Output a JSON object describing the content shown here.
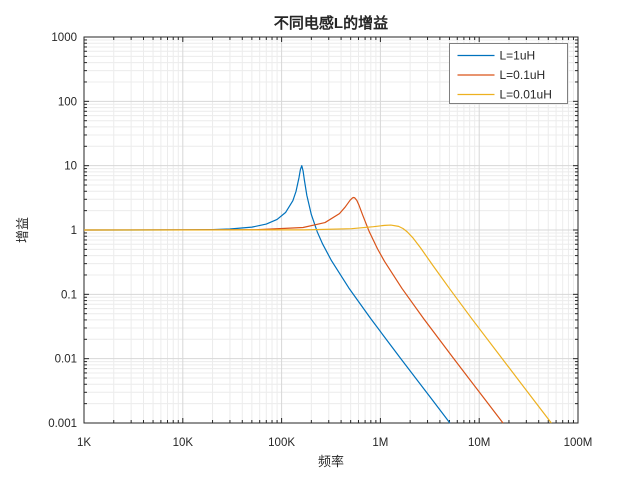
{
  "colors": {
    "background": "#ffffff",
    "axis": "#262626",
    "grid_major": "#d7d7d7",
    "grid_minor": "#ececec",
    "legend_border": "#808080",
    "series": [
      "#0072BD",
      "#D95319",
      "#EDB120"
    ]
  },
  "chart_data": {
    "type": "line",
    "title": "不同电感L的增益",
    "xlabel": "频率",
    "ylabel": "增益",
    "x_scale": "log",
    "y_scale": "log",
    "xlim": [
      1000,
      100000000
    ],
    "ylim": [
      0.001,
      1000
    ],
    "grid": {
      "major": true,
      "minor": true
    },
    "x_ticks": [
      [
        1000,
        "1K"
      ],
      [
        10000,
        "10K"
      ],
      [
        100000,
        "100K"
      ],
      [
        1000000,
        "1M"
      ],
      [
        10000000,
        "10M"
      ],
      [
        100000000,
        "100M"
      ]
    ],
    "y_ticks": [
      [
        1000,
        "1000"
      ],
      [
        100,
        "100"
      ],
      [
        10,
        "10"
      ],
      [
        1,
        "1"
      ],
      [
        0.1,
        "0.1"
      ],
      [
        0.01,
        "0.01"
      ],
      [
        0.001,
        "0.001"
      ]
    ],
    "legend": {
      "position": "top-right",
      "entries": [
        "L=1uH",
        "L=0.1uH",
        "L=0.01uH"
      ]
    },
    "series": [
      {
        "name": "L=1uH",
        "color": "#0072BD",
        "points": [
          [
            1000,
            1.0
          ],
          [
            3000,
            1.0
          ],
          [
            10000,
            1.004
          ],
          [
            20000,
            1.016
          ],
          [
            30000,
            1.036
          ],
          [
            50000,
            1.108
          ],
          [
            70000,
            1.235
          ],
          [
            90000,
            1.458
          ],
          [
            110000,
            1.88
          ],
          [
            130000,
            2.86
          ],
          [
            140000,
            4.0
          ],
          [
            150000,
            6.53
          ],
          [
            155000,
            8.71
          ],
          [
            160000,
            10.0
          ],
          [
            165000,
            8.26
          ],
          [
            170000,
            5.99
          ],
          [
            180000,
            3.47
          ],
          [
            200000,
            1.736
          ],
          [
            230000,
            0.929
          ],
          [
            260000,
            0.607
          ],
          [
            320000,
            0.333
          ],
          [
            480000,
            0.125
          ],
          [
            800000,
            0.0417
          ],
          [
            1600000,
            0.0101
          ],
          [
            3200000,
            0.00251
          ],
          [
            5050000,
            0.001
          ]
        ]
      },
      {
        "name": "L=0.1uH",
        "color": "#D95319",
        "points": [
          [
            1000,
            1.0
          ],
          [
            55000,
            1.01
          ],
          [
            165000,
            1.093
          ],
          [
            275000,
            1.305
          ],
          [
            385000,
            1.798
          ],
          [
            440000,
            2.272
          ],
          [
            495000,
            2.921
          ],
          [
            523000,
            3.164
          ],
          [
            536000,
            3.2
          ],
          [
            550000,
            3.16
          ],
          [
            578000,
            2.876
          ],
          [
            605000,
            2.46
          ],
          [
            660000,
            1.721
          ],
          [
            770000,
            0.946
          ],
          [
            935000,
            0.509
          ],
          [
            1100000,
            0.326
          ],
          [
            1650000,
            0.124
          ],
          [
            2750000,
            0.0416
          ],
          [
            5500000,
            0.0101
          ],
          [
            11000000,
            0.00251
          ],
          [
            17400000,
            0.001
          ]
        ]
      },
      {
        "name": "L=0.01uH",
        "color": "#EDB120",
        "points": [
          [
            1000,
            1.0
          ],
          [
            170000,
            1.005
          ],
          [
            510000,
            1.048
          ],
          [
            850000,
            1.126
          ],
          [
            1105000,
            1.181
          ],
          [
            1275000,
            1.194
          ],
          [
            1530000,
            1.139
          ],
          [
            1700000,
            1.05
          ],
          [
            1870000,
            0.936
          ],
          [
            2125000,
            0.76
          ],
          [
            2550000,
            0.527
          ],
          [
            3400000,
            0.281
          ],
          [
            5100000,
            0.118
          ],
          [
            8500000,
            0.0409
          ],
          [
            17000000,
            0.0101
          ],
          [
            34000000,
            0.0025
          ],
          [
            53700000,
            0.001
          ]
        ]
      }
    ]
  }
}
